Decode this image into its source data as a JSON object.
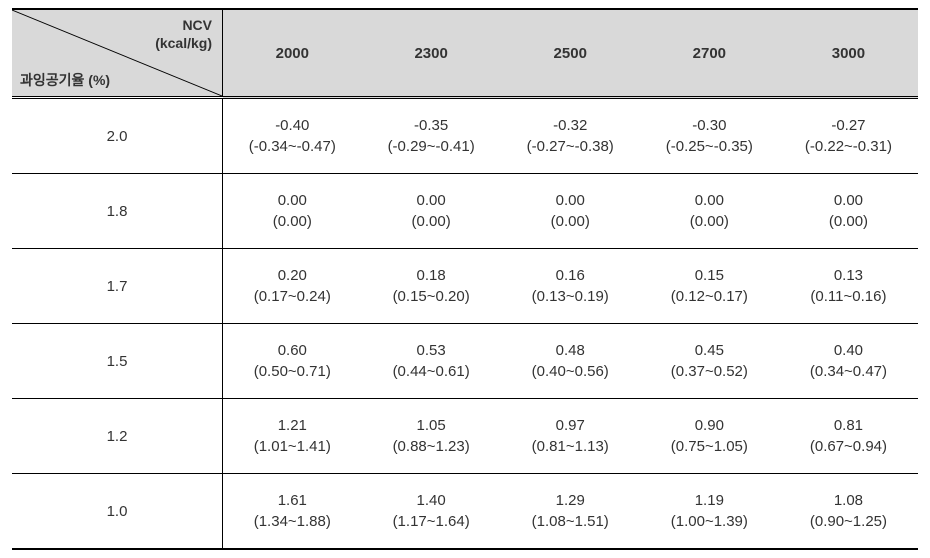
{
  "table": {
    "header": {
      "diagonal_top_line1": "NCV",
      "diagonal_top_line2": "(kcal/kg)",
      "diagonal_bottom": "과잉공기율 (%)",
      "columns": [
        "2000",
        "2300",
        "2500",
        "2700",
        "3000"
      ]
    },
    "rows": [
      {
        "label": "2.0",
        "cells": [
          {
            "main": "-0.40",
            "sub": "(-0.34~-0.47)"
          },
          {
            "main": "-0.35",
            "sub": "(-0.29~-0.41)"
          },
          {
            "main": "-0.32",
            "sub": "(-0.27~-0.38)"
          },
          {
            "main": "-0.30",
            "sub": "(-0.25~-0.35)"
          },
          {
            "main": "-0.27",
            "sub": "(-0.22~-0.31)"
          }
        ]
      },
      {
        "label": "1.8",
        "cells": [
          {
            "main": "0.00",
            "sub": "(0.00)"
          },
          {
            "main": "0.00",
            "sub": "(0.00)"
          },
          {
            "main": "0.00",
            "sub": "(0.00)"
          },
          {
            "main": "0.00",
            "sub": "(0.00)"
          },
          {
            "main": "0.00",
            "sub": "(0.00)"
          }
        ]
      },
      {
        "label": "1.7",
        "cells": [
          {
            "main": "0.20",
            "sub": "(0.17~0.24)"
          },
          {
            "main": "0.18",
            "sub": "(0.15~0.20)"
          },
          {
            "main": "0.16",
            "sub": "(0.13~0.19)"
          },
          {
            "main": "0.15",
            "sub": "(0.12~0.17)"
          },
          {
            "main": "0.13",
            "sub": "(0.11~0.16)"
          }
        ]
      },
      {
        "label": "1.5",
        "cells": [
          {
            "main": "0.60",
            "sub": "(0.50~0.71)"
          },
          {
            "main": "0.53",
            "sub": "(0.44~0.61)"
          },
          {
            "main": "0.48",
            "sub": "(0.40~0.56)"
          },
          {
            "main": "0.45",
            "sub": "(0.37~0.52)"
          },
          {
            "main": "0.40",
            "sub": "(0.34~0.47)"
          }
        ]
      },
      {
        "label": "1.2",
        "cells": [
          {
            "main": "1.21",
            "sub": "(1.01~1.41)"
          },
          {
            "main": "1.05",
            "sub": "(0.88~1.23)"
          },
          {
            "main": "0.97",
            "sub": "(0.81~1.13)"
          },
          {
            "main": "0.90",
            "sub": "(0.75~1.05)"
          },
          {
            "main": "0.81",
            "sub": "(0.67~0.94)"
          }
        ]
      },
      {
        "label": "1.0",
        "cells": [
          {
            "main": "1.61",
            "sub": "(1.34~1.88)"
          },
          {
            "main": "1.40",
            "sub": "(1.17~1.64)"
          },
          {
            "main": "1.29",
            "sub": "(1.08~1.51)"
          },
          {
            "main": "1.19",
            "sub": "(1.00~1.39)"
          },
          {
            "main": "1.08",
            "sub": "(0.90~1.25)"
          }
        ]
      }
    ]
  },
  "style": {
    "header_bg": "#d9d9d9",
    "border_color": "#000000",
    "text_color": "#333333",
    "font_size_header": 15,
    "font_size_body": 15,
    "font_size_diag": 14
  }
}
